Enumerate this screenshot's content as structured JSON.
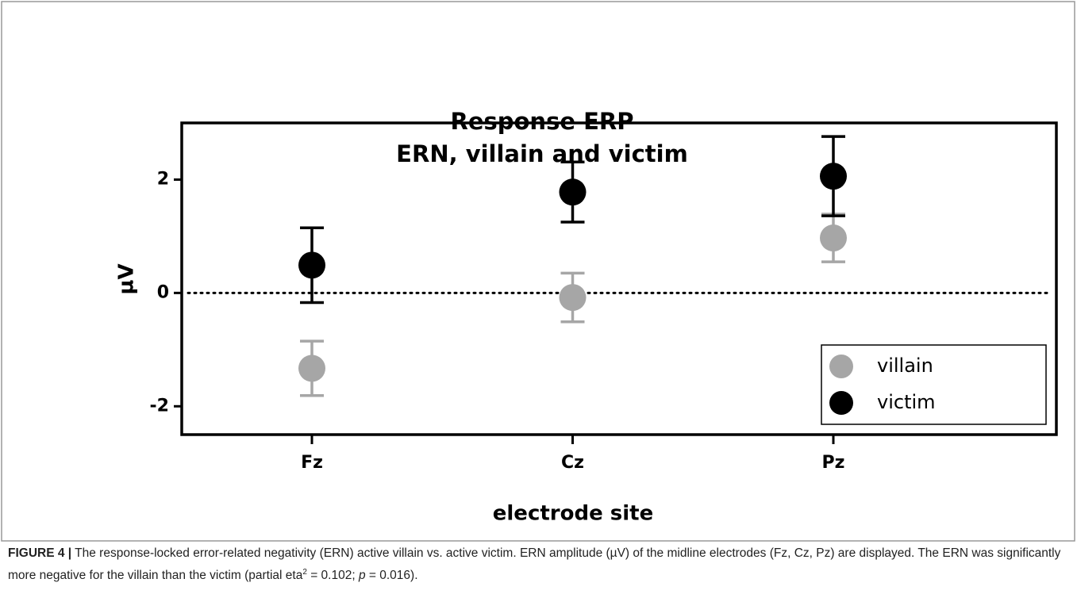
{
  "chart_data": {
    "type": "scatter",
    "title": [
      "Response ERP",
      "ERN, villain and victim"
    ],
    "x_label": "electrode site",
    "y_label": "µV",
    "categories": [
      "Fz",
      "Cz",
      "Pz"
    ],
    "series": [
      {
        "name": "villain",
        "color": "#a6a6a6",
        "values": [
          -1.33,
          -0.08,
          0.97
        ],
        "errors": [
          0.48,
          0.43,
          0.42
        ]
      },
      {
        "name": "victim",
        "color": "#000000",
        "values": [
          0.49,
          1.78,
          2.06
        ],
        "errors": [
          0.66,
          0.53,
          0.7
        ]
      }
    ],
    "ylim": [
      -2.5,
      3
    ],
    "yticks": [
      -2,
      0,
      2
    ],
    "reference_line": 0,
    "legend": "lower right"
  },
  "caption": {
    "label": "FIGURE 4 |",
    "text_1": " The response-locked error-related negativity (ERN) active villain vs. active victim. ERN amplitude (µV) of the midline electrodes (Fz, Cz, Pz) are displayed. The ERN was significantly more negative for the villain than the victim (partial eta",
    "sup": "2",
    "text_2": " = 0.102; ",
    "italic": "p",
    "text_3": " = 0.016)."
  }
}
